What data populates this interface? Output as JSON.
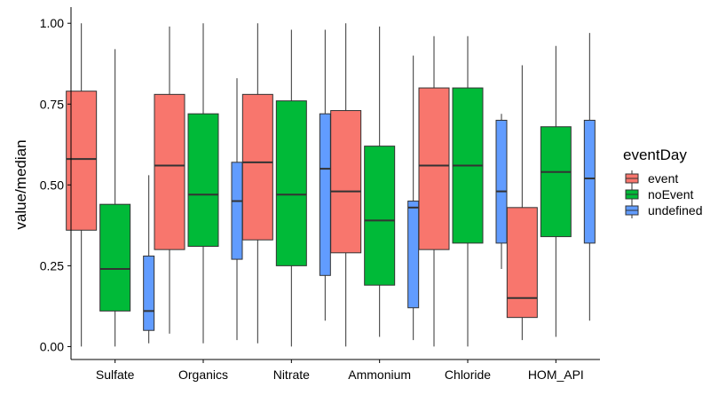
{
  "chart_data": {
    "type": "boxplot",
    "xlabel": "",
    "ylabel": "value/median",
    "ylim": [
      -0.04,
      1.05
    ],
    "y_ticks": [
      "0.00",
      "0.25",
      "0.50",
      "0.75",
      "1.00"
    ],
    "categories": [
      "Sulfate",
      "Organics",
      "Nitrate",
      "Ammonium",
      "Chloride",
      "HOM_API"
    ],
    "legend": {
      "title": "eventDay",
      "position": "right"
    },
    "grid": false,
    "series": [
      {
        "name": "event",
        "color": "#F8766D",
        "boxes": [
          {
            "min": 0.0,
            "q1": 0.36,
            "median": 0.58,
            "q3": 0.79,
            "max": 1.0
          },
          {
            "min": 0.04,
            "q1": 0.3,
            "median": 0.56,
            "q3": 0.78,
            "max": 0.99
          },
          {
            "min": 0.01,
            "q1": 0.33,
            "median": 0.57,
            "q3": 0.78,
            "max": 1.0
          },
          {
            "min": 0.0,
            "q1": 0.29,
            "median": 0.48,
            "q3": 0.73,
            "max": 1.0
          },
          {
            "min": 0.0,
            "q1": 0.3,
            "median": 0.56,
            "q3": 0.8,
            "max": 0.96
          },
          {
            "min": 0.02,
            "q1": 0.09,
            "median": 0.15,
            "q3": 0.43,
            "max": 0.87
          }
        ]
      },
      {
        "name": "noEvent",
        "color": "#00BA38",
        "boxes": [
          {
            "min": 0.0,
            "q1": 0.11,
            "median": 0.24,
            "q3": 0.44,
            "max": 0.92
          },
          {
            "min": 0.01,
            "q1": 0.31,
            "median": 0.47,
            "q3": 0.72,
            "max": 1.0
          },
          {
            "min": 0.0,
            "q1": 0.25,
            "median": 0.47,
            "q3": 0.76,
            "max": 0.98
          },
          {
            "min": 0.03,
            "q1": 0.19,
            "median": 0.39,
            "q3": 0.62,
            "max": 0.99
          },
          {
            "min": 0.0,
            "q1": 0.32,
            "median": 0.56,
            "q3": 0.8,
            "max": 0.96
          },
          {
            "min": 0.03,
            "q1": 0.34,
            "median": 0.54,
            "q3": 0.68,
            "max": 0.93
          }
        ]
      },
      {
        "name": "undefined",
        "color": "#619CFF",
        "boxes": [
          {
            "min": 0.01,
            "q1": 0.05,
            "median": 0.11,
            "q3": 0.28,
            "max": 0.53
          },
          {
            "min": 0.02,
            "q1": 0.27,
            "median": 0.45,
            "q3": 0.57,
            "max": 0.83
          },
          {
            "min": 0.08,
            "q1": 0.22,
            "median": 0.55,
            "q3": 0.72,
            "max": 0.98
          },
          {
            "min": 0.02,
            "q1": 0.12,
            "median": 0.43,
            "q3": 0.45,
            "max": 0.9
          },
          {
            "min": 0.24,
            "q1": 0.32,
            "median": 0.48,
            "q3": 0.7,
            "max": 0.72
          },
          {
            "min": 0.08,
            "q1": 0.32,
            "median": 0.52,
            "q3": 0.7,
            "max": 0.97
          }
        ]
      }
    ]
  }
}
